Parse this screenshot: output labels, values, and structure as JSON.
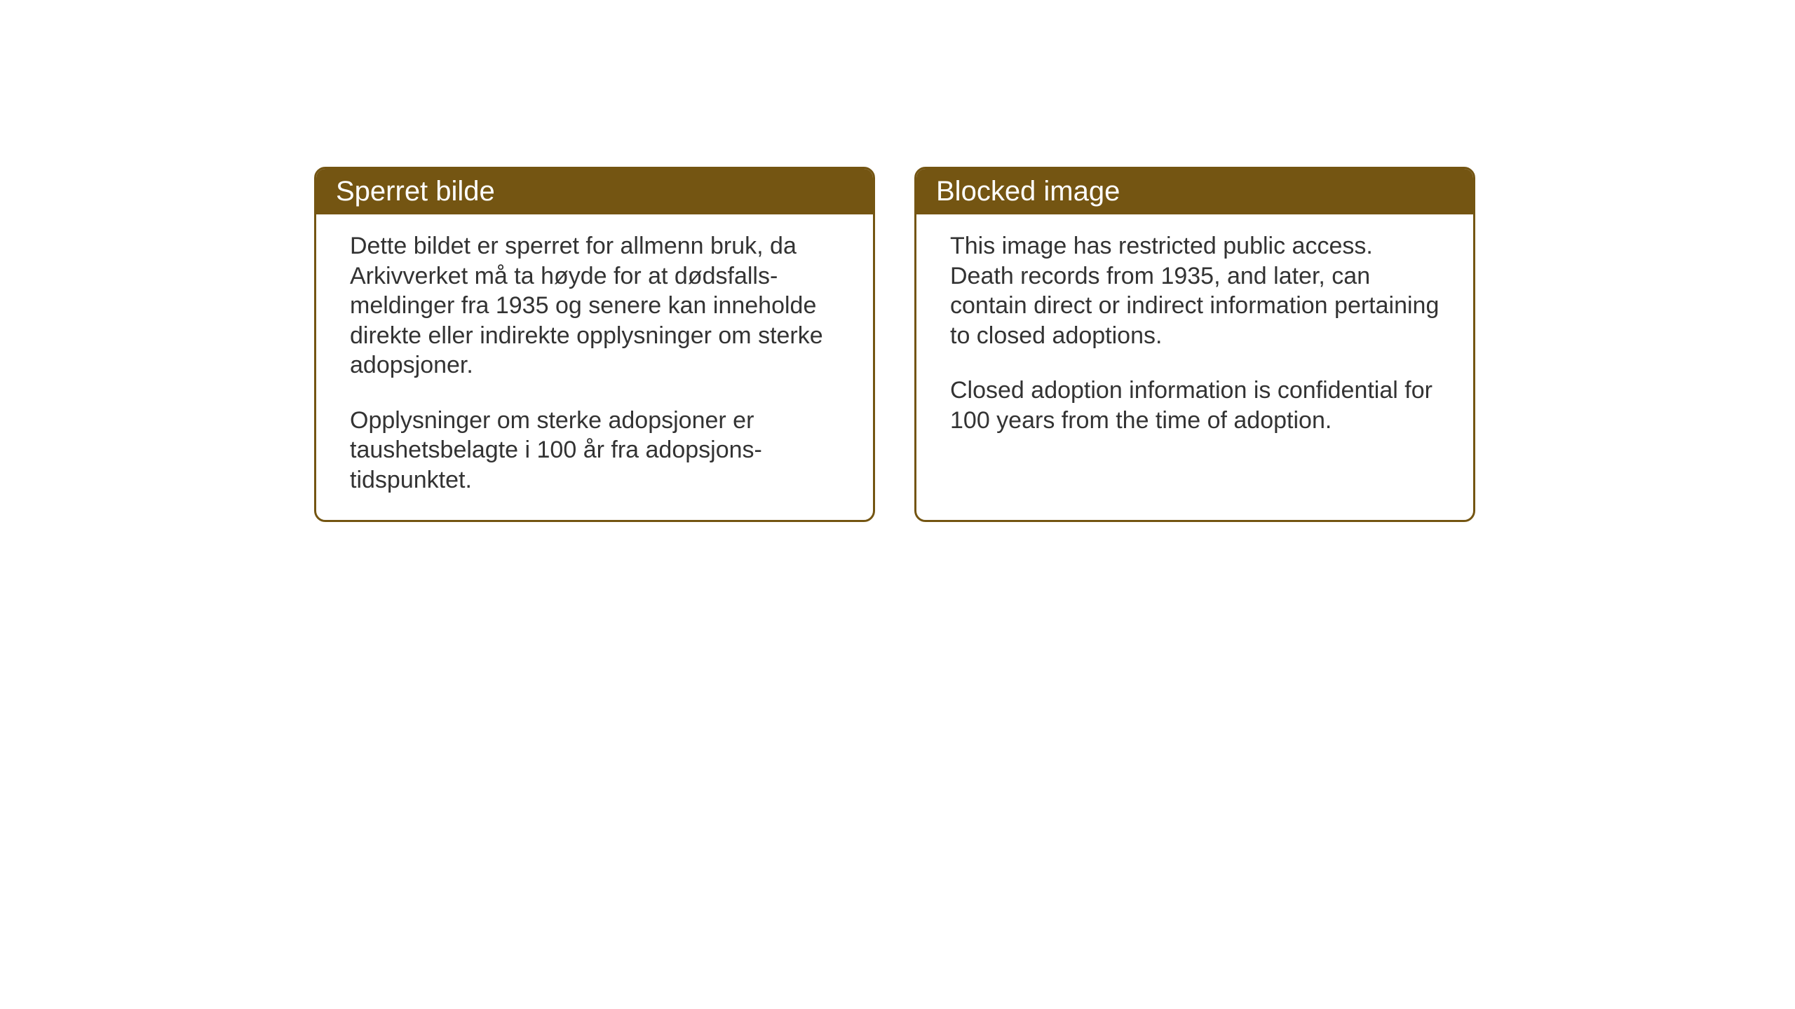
{
  "layout": {
    "background_color": "#ffffff",
    "card_border_color": "#745512",
    "card_header_bg": "#745512",
    "card_header_text_color": "#ffffff",
    "card_body_text_color": "#333333",
    "card_border_radius": 16,
    "card_border_width": 3,
    "header_fontsize": 40,
    "body_fontsize": 34
  },
  "cards": {
    "norwegian": {
      "title": "Sperret bilde",
      "paragraph1": "Dette bildet er sperret for allmenn bruk, da Arkivverket må ta høyde for at dødsfalls-meldinger fra 1935 og senere kan inneholde direkte eller indirekte opplysninger om sterke adopsjoner.",
      "paragraph2": "Opplysninger om sterke adopsjoner er taushetsbelagte i 100 år fra adopsjons-tidspunktet."
    },
    "english": {
      "title": "Blocked image",
      "paragraph1": "This image has restricted public access. Death records from 1935, and later, can contain direct or indirect information pertaining to closed adoptions.",
      "paragraph2": "Closed adoption information is confidential for 100 years from the time of adoption."
    }
  }
}
